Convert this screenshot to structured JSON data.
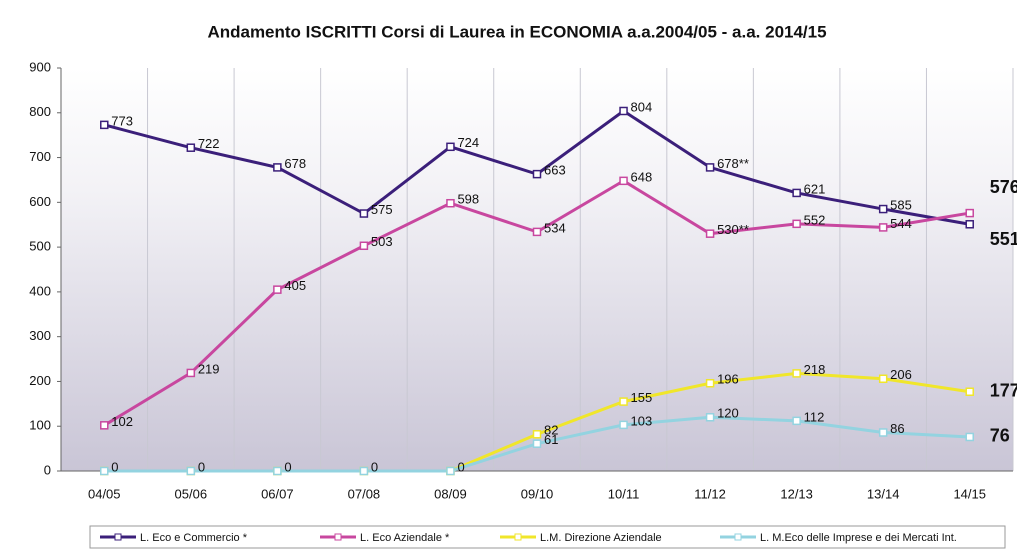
{
  "chart_data": {
    "type": "line",
    "title": "Andamento ISCRITTI Corsi di Laurea in ECONOMIA  a.a.2004/05 - a.a. 2014/15",
    "categories": [
      "04/05",
      "05/06",
      "06/07",
      "07/08",
      "08/09",
      "09/10",
      "10/11",
      "11/12",
      "12/13",
      "13/14",
      "14/15"
    ],
    "series": [
      {
        "name": "L. Eco e Commercio *",
        "color": "#3b1f7a",
        "values": [
          773,
          722,
          678,
          575,
          724,
          663,
          804,
          678,
          621,
          585,
          551
        ],
        "value_labels": [
          "773",
          "722",
          "678",
          "575",
          "724",
          "663",
          "804",
          "678**",
          "621",
          "585",
          "551"
        ]
      },
      {
        "name": "L. Eco Aziendale *",
        "color": "#c8479f",
        "values": [
          102,
          219,
          405,
          503,
          598,
          534,
          648,
          530,
          552,
          544,
          576
        ],
        "value_labels": [
          "102",
          "219",
          "405",
          "503",
          "598",
          "534",
          "648",
          "530**",
          "552",
          "544",
          "576"
        ]
      },
      {
        "name": "L.M. Direzione Aziendale",
        "color": "#f0e62a",
        "values": [
          0,
          0,
          0,
          0,
          0,
          82,
          155,
          196,
          218,
          206,
          177
        ],
        "value_labels": [
          null,
          null,
          null,
          null,
          null,
          "82",
          "155",
          "196",
          "218",
          "206",
          "177"
        ]
      },
      {
        "name": "L. M.Eco delle Imprese e dei Mercati Int.",
        "color": "#93d3e0",
        "values": [
          0,
          0,
          0,
          0,
          0,
          61,
          103,
          120,
          112,
          86,
          76
        ]
      }
    ],
    "ylim": [
      0,
      900
    ],
    "yticks": [
      0,
      100,
      200,
      300,
      400,
      500,
      600,
      700,
      800,
      900
    ],
    "grid": true
  }
}
